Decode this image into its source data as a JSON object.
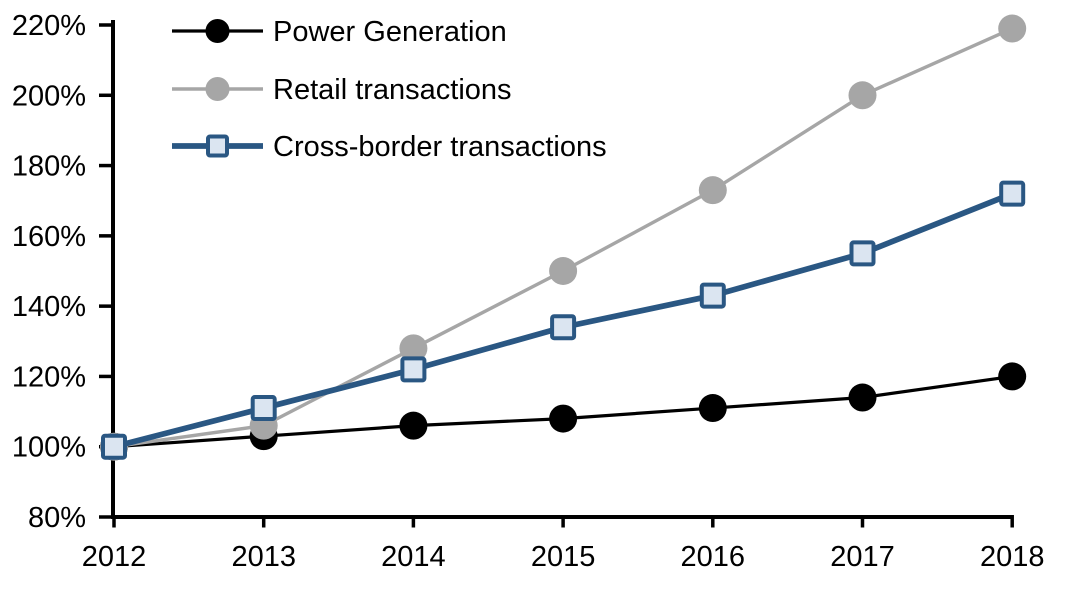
{
  "chart_data": {
    "type": "line",
    "title": "",
    "xlabel": "",
    "ylabel": "",
    "x": [
      2012,
      2013,
      2014,
      2015,
      2016,
      2017,
      2018
    ],
    "x_tick_labels": [
      "2012",
      "2013",
      "2014",
      "2015",
      "2016",
      "2017",
      "2018"
    ],
    "y_ticks": [
      80,
      100,
      120,
      140,
      160,
      180,
      200,
      220
    ],
    "y_tick_labels": [
      "80%",
      "100%",
      "120%",
      "140%",
      "160%",
      "180%",
      "200%",
      "220%"
    ],
    "ylim": [
      80,
      220
    ],
    "grid": false,
    "legend_position": "top-left",
    "axis_color": "#000000",
    "text_color": "#000000",
    "background_color": "#FFFFFF",
    "series": [
      {
        "name": "Power Generation",
        "values": [
          100,
          103,
          106,
          108,
          111,
          114,
          120
        ],
        "color": "#000000",
        "marker": "circle",
        "marker_fill": "#000000",
        "line_width": 3.2
      },
      {
        "name": "Retail transactions",
        "values": [
          100,
          106,
          128,
          150,
          173,
          200,
          219
        ],
        "color": "#A6A6A6",
        "marker": "circle",
        "marker_fill": "#A6A6A6",
        "line_width": 3.4
      },
      {
        "name": "Cross-border transactions",
        "values": [
          100,
          111,
          122,
          134,
          143,
          155,
          172
        ],
        "color": "#2A5783",
        "marker": "square",
        "marker_fill": "#DBE5F1",
        "line_width": 5.7
      }
    ]
  }
}
